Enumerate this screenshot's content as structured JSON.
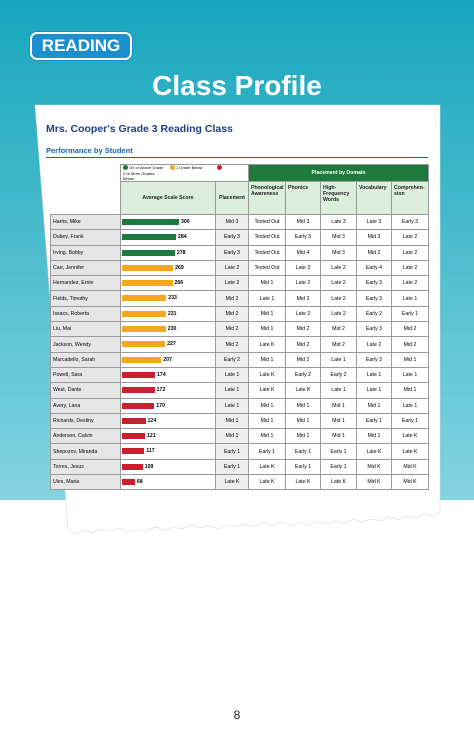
{
  "header": {
    "badge": "READING",
    "title": "Class Profile"
  },
  "report": {
    "title": "Mrs. Cooper's Grade 3 Reading Class",
    "subtitle": "Performance by Student",
    "legend": [
      {
        "label": "On or Above Grade",
        "color": "#1b7a3c"
      },
      {
        "label": "1 Grade Below",
        "color": "#f5a623"
      },
      {
        "label": "2 or More Grades Below",
        "color": "#c8202f"
      }
    ],
    "columns": {
      "score": "Average Scale Score",
      "placement": "Placement",
      "domain_group": "Placement by Domain",
      "domains": [
        "Phonological Awareness",
        "Phonics",
        "High-Frequency Words",
        "Vocabulary",
        "Comprehen-sion"
      ]
    },
    "rows": [
      {
        "name": "Harris, Mike",
        "score": 300,
        "color": "#1b7a3c",
        "placement": "Mid 3",
        "domains": [
          "Tested Out",
          "Mid 3",
          "Late 3",
          "Late 3",
          "Early 3"
        ]
      },
      {
        "name": "Dubey, Frank",
        "score": 284,
        "color": "#1b7a3c",
        "placement": "Early 3",
        "domains": [
          "Tested Out",
          "Early 3",
          "Mid 3",
          "Mid 3",
          "Late 2"
        ]
      },
      {
        "name": "Irving, Bobby",
        "score": 278,
        "color": "#1b7a3c",
        "placement": "Early 3",
        "domains": [
          "Tested Out",
          "Mid 4",
          "Mid 3",
          "Mid 2",
          "Late 2"
        ]
      },
      {
        "name": "Carr, Jennifer",
        "score": 269,
        "color": "#f5a623",
        "placement": "Late 2",
        "domains": [
          "Tested Out",
          "Late 3",
          "Late 2",
          "Early 4",
          "Late 2"
        ]
      },
      {
        "name": "Hernandez, Ernie",
        "score": 266,
        "color": "#f5a623",
        "placement": "Late 2",
        "domains": [
          "Mid 1",
          "Late 2",
          "Late 2",
          "Early 3",
          "Late 2"
        ]
      },
      {
        "name": "Fields, Timothy",
        "score": 233,
        "color": "#f5a623",
        "placement": "Mid 2",
        "domains": [
          "Late 1",
          "Mid 2",
          "Late 2",
          "Early 3",
          "Late 1"
        ]
      },
      {
        "name": "Issacs, Roberta",
        "score": 231,
        "color": "#f5a623",
        "placement": "Mid 2",
        "domains": [
          "Mid 1",
          "Late 2",
          "Late 2",
          "Early 2",
          "Early 1"
        ]
      },
      {
        "name": "Liu, Mai",
        "score": 230,
        "color": "#f5a623",
        "placement": "Mid 2",
        "domains": [
          "Mid 1",
          "Mid 2",
          "Mid 2",
          "Early 3",
          "Mid 2"
        ]
      },
      {
        "name": "Jackson, Wendy",
        "score": 227,
        "color": "#f5a623",
        "placement": "Mid 2",
        "domains": [
          "Late K",
          "Mid 2",
          "Mid 2",
          "Late 2",
          "Mid 2"
        ]
      },
      {
        "name": "Marcadello, Sarah",
        "score": 207,
        "color": "#f5a623",
        "placement": "Early 2",
        "domains": [
          "Mid 1",
          "Mid 2",
          "Late 1",
          "Early 3",
          "Mid 1"
        ]
      },
      {
        "name": "Powell, Sara",
        "score": 174,
        "color": "#c8202f",
        "placement": "Late 1",
        "domains": [
          "Late K",
          "Early 2",
          "Early 2",
          "Late 1",
          "Late 1"
        ]
      },
      {
        "name": "West, Dante",
        "score": 172,
        "color": "#c8202f",
        "placement": "Late 1",
        "domains": [
          "Late K",
          "Late K",
          "Late 1",
          "Late 1",
          "Mid 1"
        ]
      },
      {
        "name": "Avery, Lana",
        "score": 170,
        "color": "#c8202f",
        "placement": "Late 1",
        "domains": [
          "Mid 1",
          "Mid 1",
          "Mid 1",
          "Mid 1",
          "Late 1"
        ]
      },
      {
        "name": "Richards, Destiny",
        "score": 124,
        "color": "#c8202f",
        "placement": "Mid 1",
        "domains": [
          "Mid 1",
          "Mid 1",
          "Mid 1",
          "Early 1",
          "Early 1"
        ]
      },
      {
        "name": "Anderson, Calvin",
        "score": 121,
        "color": "#c8202f",
        "placement": "Mid 1",
        "domains": [
          "Mid 1",
          "Mid 1",
          "Mid 1",
          "Mid 1",
          "Late K"
        ]
      },
      {
        "name": "Shepozov, Miranda",
        "score": 117,
        "color": "#c8202f",
        "placement": "Early 1",
        "domains": [
          "Early 1",
          "Early 1",
          "Early 1",
          "Late K",
          "Late K"
        ]
      },
      {
        "name": "Torres, Jesus",
        "score": 109,
        "color": "#c8202f",
        "placement": "Early 1",
        "domains": [
          "Late K",
          "Early 1",
          "Early 1",
          "Mid K",
          "Mid K"
        ]
      },
      {
        "name": "Ules, Maria",
        "score": 68,
        "color": "#c8202f",
        "placement": "Late K",
        "domains": [
          "Late K",
          "Late K",
          "Late K",
          "Mid K",
          "Mid K"
        ]
      }
    ]
  },
  "page_number": "8"
}
